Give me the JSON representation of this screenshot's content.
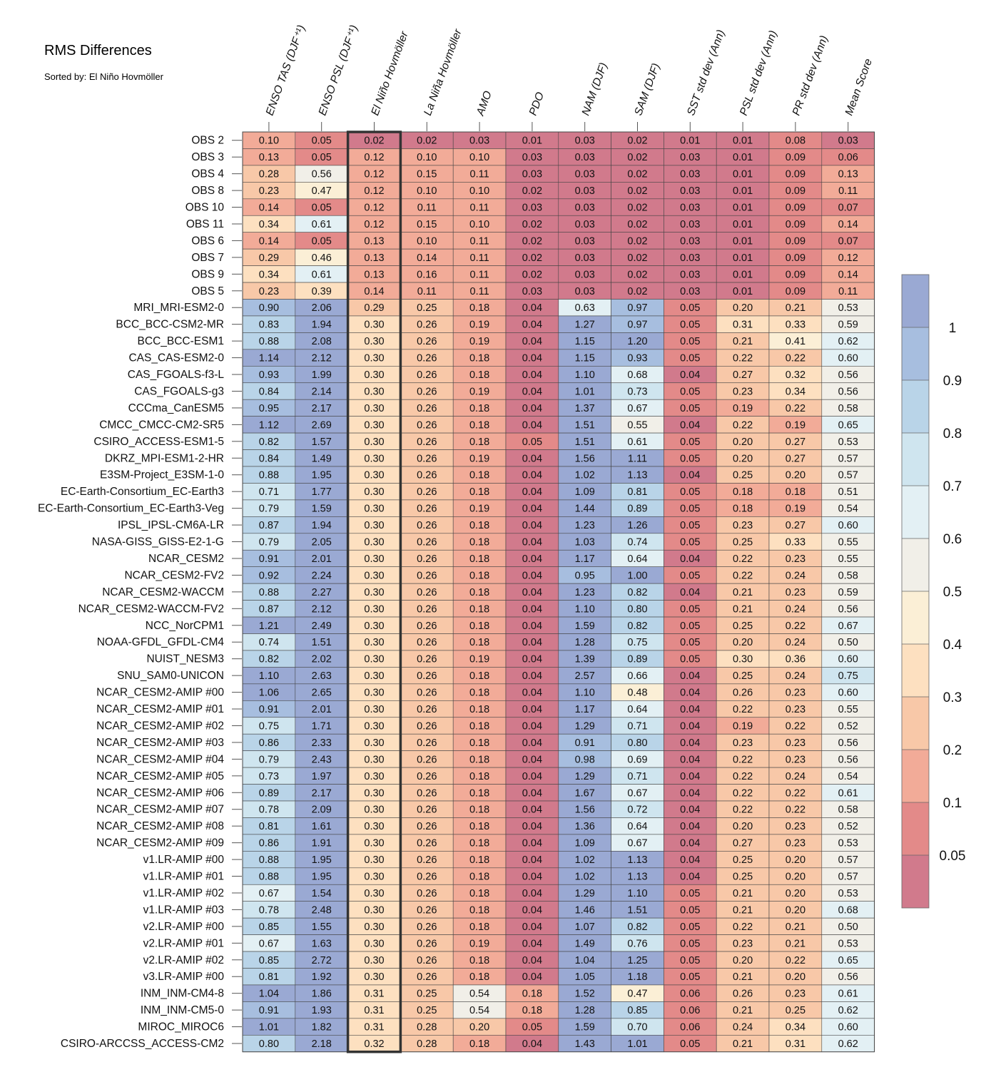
{
  "title": "RMS Differences",
  "subtitle": "Sorted by: El Niño Hovmöller",
  "chart_data": {
    "type": "heatmap",
    "columns": [
      "ENSO TAS (DJF⁺¹)",
      "ENSO PSL (DJF⁺¹)",
      "El Niño Hovmöller",
      "La Niña Hovmöller",
      "AMO",
      "PDO",
      "NAM (DJF)",
      "SAM (DJF)",
      "SST std dev (Ann)",
      "PSL std dev (Ann)",
      "PR std dev (Ann)",
      "Mean Score"
    ],
    "highlighted_column": "El Niño Hovmöller",
    "rows": [
      "OBS 2",
      "OBS 3",
      "OBS 4",
      "OBS 8",
      "OBS 10",
      "OBS 11",
      "OBS 6",
      "OBS 7",
      "OBS 9",
      "OBS 5",
      "MRI_MRI-ESM2-0",
      "BCC_BCC-CSM2-MR",
      "BCC_BCC-ESM1",
      "CAS_CAS-ESM2-0",
      "CAS_FGOALS-f3-L",
      "CAS_FGOALS-g3",
      "CCCma_CanESM5",
      "CMCC_CMCC-CM2-SR5",
      "CSIRO_ACCESS-ESM1-5",
      "DKRZ_MPI-ESM1-2-HR",
      "E3SM-Project_E3SM-1-0",
      "EC-Earth-Consortium_EC-Earth3",
      "EC-Earth-Consortium_EC-Earth3-Veg",
      "IPSL_IPSL-CM6A-LR",
      "NASA-GISS_GISS-E2-1-G",
      "NCAR_CESM2",
      "NCAR_CESM2-FV2",
      "NCAR_CESM2-WACCM",
      "NCAR_CESM2-WACCM-FV2",
      "NCC_NorCPM1",
      "NOAA-GFDL_GFDL-CM4",
      "NUIST_NESM3",
      "SNU_SAM0-UNICON",
      "NCAR_CESM2-AMIP  #00",
      "NCAR_CESM2-AMIP  #01",
      "NCAR_CESM2-AMIP  #02",
      "NCAR_CESM2-AMIP  #03",
      "NCAR_CESM2-AMIP  #04",
      "NCAR_CESM2-AMIP  #05",
      "NCAR_CESM2-AMIP  #06",
      "NCAR_CESM2-AMIP  #07",
      "NCAR_CESM2-AMIP  #08",
      "NCAR_CESM2-AMIP  #09",
      "v1.LR-AMIP  #00",
      "v1.LR-AMIP  #01",
      "v1.LR-AMIP  #02",
      "v1.LR-AMIP  #03",
      "v2.LR-AMIP  #00",
      "v2.LR-AMIP  #01",
      "v2.LR-AMIP  #02",
      "v3.LR-AMIP  #00",
      "INM_INM-CM4-8",
      "INM_INM-CM5-0",
      "MIROC_MIROC6",
      "CSIRO-ARCCSS_ACCESS-CM2"
    ],
    "values": [
      [
        "0.10",
        "0.05",
        "0.02",
        "0.02",
        "0.03",
        "0.01",
        "0.03",
        "0.02",
        "0.01",
        "0.01",
        "0.08",
        "0.03"
      ],
      [
        "0.13",
        "0.05",
        "0.12",
        "0.10",
        "0.10",
        "0.03",
        "0.03",
        "0.02",
        "0.03",
        "0.01",
        "0.09",
        "0.06"
      ],
      [
        "0.28",
        "0.56",
        "0.12",
        "0.15",
        "0.11",
        "0.03",
        "0.03",
        "0.02",
        "0.03",
        "0.01",
        "0.09",
        "0.13"
      ],
      [
        "0.23",
        "0.47",
        "0.12",
        "0.10",
        "0.10",
        "0.02",
        "0.03",
        "0.02",
        "0.03",
        "0.01",
        "0.09",
        "0.11"
      ],
      [
        "0.14",
        "0.05",
        "0.12",
        "0.11",
        "0.11",
        "0.03",
        "0.03",
        "0.02",
        "0.03",
        "0.01",
        "0.09",
        "0.07"
      ],
      [
        "0.34",
        "0.61",
        "0.12",
        "0.15",
        "0.10",
        "0.02",
        "0.03",
        "0.02",
        "0.03",
        "0.01",
        "0.09",
        "0.14"
      ],
      [
        "0.14",
        "0.05",
        "0.13",
        "0.10",
        "0.11",
        "0.02",
        "0.03",
        "0.02",
        "0.03",
        "0.01",
        "0.09",
        "0.07"
      ],
      [
        "0.29",
        "0.46",
        "0.13",
        "0.14",
        "0.11",
        "0.02",
        "0.03",
        "0.02",
        "0.03",
        "0.01",
        "0.09",
        "0.12"
      ],
      [
        "0.34",
        "0.61",
        "0.13",
        "0.16",
        "0.11",
        "0.02",
        "0.03",
        "0.02",
        "0.03",
        "0.01",
        "0.09",
        "0.14"
      ],
      [
        "0.23",
        "0.39",
        "0.14",
        "0.11",
        "0.11",
        "0.03",
        "0.03",
        "0.02",
        "0.03",
        "0.01",
        "0.09",
        "0.11"
      ],
      [
        "0.90",
        "2.06",
        "0.29",
        "0.25",
        "0.18",
        "0.04",
        "0.63",
        "0.97",
        "0.05",
        "0.20",
        "0.21",
        "0.53"
      ],
      [
        "0.83",
        "1.94",
        "0.30",
        "0.26",
        "0.19",
        "0.04",
        "1.27",
        "0.97",
        "0.05",
        "0.31",
        "0.33",
        "0.59"
      ],
      [
        "0.88",
        "2.08",
        "0.30",
        "0.26",
        "0.19",
        "0.04",
        "1.15",
        "1.20",
        "0.05",
        "0.21",
        "0.41",
        "0.62"
      ],
      [
        "1.14",
        "2.12",
        "0.30",
        "0.26",
        "0.18",
        "0.04",
        "1.15",
        "0.93",
        "0.05",
        "0.22",
        "0.22",
        "0.60"
      ],
      [
        "0.93",
        "1.99",
        "0.30",
        "0.26",
        "0.18",
        "0.04",
        "1.10",
        "0.68",
        "0.04",
        "0.27",
        "0.32",
        "0.56"
      ],
      [
        "0.84",
        "2.14",
        "0.30",
        "0.26",
        "0.19",
        "0.04",
        "1.01",
        "0.73",
        "0.05",
        "0.23",
        "0.34",
        "0.56"
      ],
      [
        "0.95",
        "2.17",
        "0.30",
        "0.26",
        "0.18",
        "0.04",
        "1.37",
        "0.67",
        "0.05",
        "0.19",
        "0.22",
        "0.58"
      ],
      [
        "1.12",
        "2.69",
        "0.30",
        "0.26",
        "0.18",
        "0.04",
        "1.51",
        "0.55",
        "0.04",
        "0.22",
        "0.19",
        "0.65"
      ],
      [
        "0.82",
        "1.57",
        "0.30",
        "0.26",
        "0.18",
        "0.05",
        "1.51",
        "0.61",
        "0.05",
        "0.20",
        "0.27",
        "0.53"
      ],
      [
        "0.84",
        "1.49",
        "0.30",
        "0.26",
        "0.19",
        "0.04",
        "1.56",
        "1.11",
        "0.05",
        "0.20",
        "0.27",
        "0.57"
      ],
      [
        "0.88",
        "1.95",
        "0.30",
        "0.26",
        "0.18",
        "0.04",
        "1.02",
        "1.13",
        "0.04",
        "0.25",
        "0.20",
        "0.57"
      ],
      [
        "0.71",
        "1.77",
        "0.30",
        "0.26",
        "0.18",
        "0.04",
        "1.09",
        "0.81",
        "0.05",
        "0.18",
        "0.18",
        "0.51"
      ],
      [
        "0.79",
        "1.59",
        "0.30",
        "0.26",
        "0.19",
        "0.04",
        "1.44",
        "0.89",
        "0.05",
        "0.18",
        "0.19",
        "0.54"
      ],
      [
        "0.87",
        "1.94",
        "0.30",
        "0.26",
        "0.18",
        "0.04",
        "1.23",
        "1.26",
        "0.05",
        "0.23",
        "0.27",
        "0.60"
      ],
      [
        "0.79",
        "2.05",
        "0.30",
        "0.26",
        "0.18",
        "0.04",
        "1.03",
        "0.74",
        "0.05",
        "0.25",
        "0.33",
        "0.55"
      ],
      [
        "0.91",
        "2.01",
        "0.30",
        "0.26",
        "0.18",
        "0.04",
        "1.17",
        "0.64",
        "0.04",
        "0.22",
        "0.23",
        "0.55"
      ],
      [
        "0.92",
        "2.24",
        "0.30",
        "0.26",
        "0.18",
        "0.04",
        "0.95",
        "1.00",
        "0.05",
        "0.22",
        "0.24",
        "0.58"
      ],
      [
        "0.88",
        "2.27",
        "0.30",
        "0.26",
        "0.18",
        "0.04",
        "1.23",
        "0.82",
        "0.04",
        "0.21",
        "0.23",
        "0.59"
      ],
      [
        "0.87",
        "2.12",
        "0.30",
        "0.26",
        "0.18",
        "0.04",
        "1.10",
        "0.80",
        "0.05",
        "0.21",
        "0.24",
        "0.56"
      ],
      [
        "1.21",
        "2.49",
        "0.30",
        "0.26",
        "0.18",
        "0.04",
        "1.59",
        "0.82",
        "0.05",
        "0.25",
        "0.22",
        "0.67"
      ],
      [
        "0.74",
        "1.51",
        "0.30",
        "0.26",
        "0.18",
        "0.04",
        "1.28",
        "0.75",
        "0.05",
        "0.20",
        "0.24",
        "0.50"
      ],
      [
        "0.82",
        "2.02",
        "0.30",
        "0.26",
        "0.19",
        "0.04",
        "1.39",
        "0.89",
        "0.05",
        "0.30",
        "0.36",
        "0.60"
      ],
      [
        "1.10",
        "2.63",
        "0.30",
        "0.26",
        "0.18",
        "0.04",
        "2.57",
        "0.66",
        "0.04",
        "0.25",
        "0.24",
        "0.75"
      ],
      [
        "1.06",
        "2.65",
        "0.30",
        "0.26",
        "0.18",
        "0.04",
        "1.10",
        "0.48",
        "0.04",
        "0.26",
        "0.23",
        "0.60"
      ],
      [
        "0.91",
        "2.01",
        "0.30",
        "0.26",
        "0.18",
        "0.04",
        "1.17",
        "0.64",
        "0.04",
        "0.22",
        "0.23",
        "0.55"
      ],
      [
        "0.75",
        "1.71",
        "0.30",
        "0.26",
        "0.18",
        "0.04",
        "1.29",
        "0.71",
        "0.04",
        "0.19",
        "0.22",
        "0.52"
      ],
      [
        "0.86",
        "2.33",
        "0.30",
        "0.26",
        "0.18",
        "0.04",
        "0.91",
        "0.80",
        "0.04",
        "0.23",
        "0.23",
        "0.56"
      ],
      [
        "0.79",
        "2.43",
        "0.30",
        "0.26",
        "0.18",
        "0.04",
        "0.98",
        "0.69",
        "0.04",
        "0.22",
        "0.23",
        "0.56"
      ],
      [
        "0.73",
        "1.97",
        "0.30",
        "0.26",
        "0.18",
        "0.04",
        "1.29",
        "0.71",
        "0.04",
        "0.22",
        "0.24",
        "0.54"
      ],
      [
        "0.89",
        "2.17",
        "0.30",
        "0.26",
        "0.18",
        "0.04",
        "1.67",
        "0.67",
        "0.04",
        "0.22",
        "0.22",
        "0.61"
      ],
      [
        "0.78",
        "2.09",
        "0.30",
        "0.26",
        "0.18",
        "0.04",
        "1.56",
        "0.72",
        "0.04",
        "0.22",
        "0.22",
        "0.58"
      ],
      [
        "0.81",
        "1.61",
        "0.30",
        "0.26",
        "0.18",
        "0.04",
        "1.36",
        "0.64",
        "0.04",
        "0.20",
        "0.23",
        "0.52"
      ],
      [
        "0.86",
        "1.91",
        "0.30",
        "0.26",
        "0.18",
        "0.04",
        "1.09",
        "0.67",
        "0.04",
        "0.27",
        "0.23",
        "0.53"
      ],
      [
        "0.88",
        "1.95",
        "0.30",
        "0.26",
        "0.18",
        "0.04",
        "1.02",
        "1.13",
        "0.04",
        "0.25",
        "0.20",
        "0.57"
      ],
      [
        "0.88",
        "1.95",
        "0.30",
        "0.26",
        "0.18",
        "0.04",
        "1.02",
        "1.13",
        "0.04",
        "0.25",
        "0.20",
        "0.57"
      ],
      [
        "0.67",
        "1.54",
        "0.30",
        "0.26",
        "0.18",
        "0.04",
        "1.29",
        "1.10",
        "0.05",
        "0.21",
        "0.20",
        "0.53"
      ],
      [
        "0.78",
        "2.48",
        "0.30",
        "0.26",
        "0.18",
        "0.04",
        "1.46",
        "1.51",
        "0.05",
        "0.21",
        "0.20",
        "0.68"
      ],
      [
        "0.85",
        "1.55",
        "0.30",
        "0.26",
        "0.18",
        "0.04",
        "1.07",
        "0.82",
        "0.05",
        "0.22",
        "0.21",
        "0.50"
      ],
      [
        "0.67",
        "1.63",
        "0.30",
        "0.26",
        "0.19",
        "0.04",
        "1.49",
        "0.76",
        "0.05",
        "0.23",
        "0.21",
        "0.53"
      ],
      [
        "0.85",
        "2.72",
        "0.30",
        "0.26",
        "0.18",
        "0.04",
        "1.04",
        "1.25",
        "0.05",
        "0.20",
        "0.22",
        "0.65"
      ],
      [
        "0.81",
        "1.92",
        "0.30",
        "0.26",
        "0.18",
        "0.04",
        "1.05",
        "1.18",
        "0.05",
        "0.21",
        "0.20",
        "0.56"
      ],
      [
        "1.04",
        "1.86",
        "0.31",
        "0.25",
        "0.54",
        "0.18",
        "1.52",
        "0.47",
        "0.06",
        "0.26",
        "0.23",
        "0.61"
      ],
      [
        "0.91",
        "1.93",
        "0.31",
        "0.25",
        "0.54",
        "0.18",
        "1.28",
        "0.85",
        "0.06",
        "0.21",
        "0.25",
        "0.62"
      ],
      [
        "1.01",
        "1.82",
        "0.31",
        "0.28",
        "0.20",
        "0.05",
        "1.59",
        "0.70",
        "0.06",
        "0.24",
        "0.34",
        "0.60"
      ],
      [
        "0.80",
        "2.18",
        "0.32",
        "0.28",
        "0.18",
        "0.04",
        "1.43",
        "1.01",
        "0.05",
        "0.21",
        "0.31",
        "0.62"
      ]
    ],
    "colorbar": {
      "boundaries": [
        0.05,
        0.1,
        0.2,
        0.3,
        0.4,
        0.5,
        0.6,
        0.7,
        0.8,
        0.9,
        1
      ],
      "labels": [
        "0.05",
        "0.1",
        "0.2",
        "0.3",
        "0.4",
        "0.5",
        "0.6",
        "0.7",
        "0.8",
        "0.9",
        "1"
      ],
      "colors": [
        "#d17a8c",
        "#e38a89",
        "#f2ab98",
        "#f8c8a8",
        "#fde0c0",
        "#fbefd6",
        "#f1efe8",
        "#e3f0f4",
        "#cfe5ef",
        "#b9d4e8",
        "#a7bedf",
        "#9aa9d3"
      ]
    }
  }
}
